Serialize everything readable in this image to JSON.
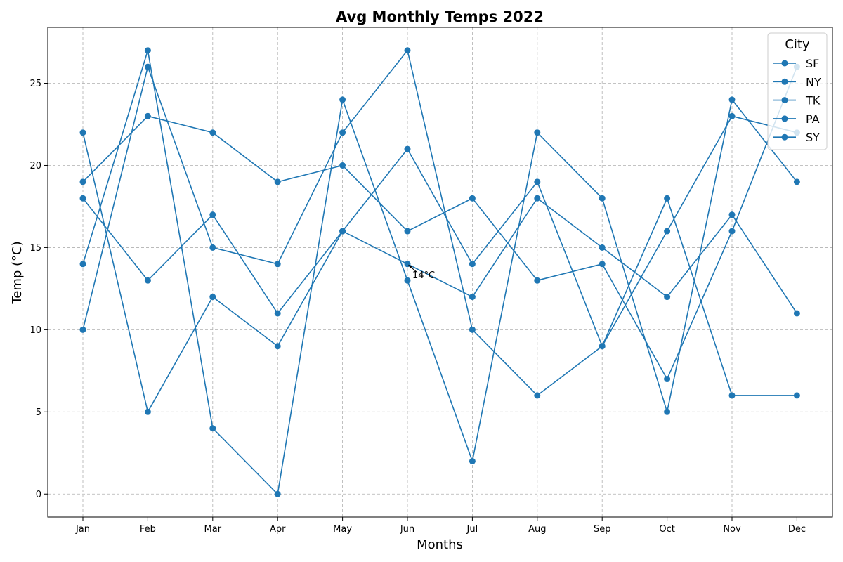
{
  "chart_data": {
    "type": "line",
    "title": "Avg Monthly Temps 2022",
    "xlabel": "Months",
    "ylabel": "Temp (°C)",
    "categories": [
      "Jan",
      "Feb",
      "Mar",
      "Apr",
      "May",
      "Jun",
      "Jul",
      "Aug",
      "Sep",
      "Oct",
      "Nov",
      "Dec"
    ],
    "ylim": [
      -1.4,
      28.4
    ],
    "yticks": [
      0,
      5,
      10,
      15,
      20,
      25
    ],
    "grid": true,
    "legend": {
      "title": "City",
      "placement": "top-right"
    },
    "series_color": "#1f77b4",
    "series": [
      {
        "name": "SF",
        "values": [
          22,
          5,
          12,
          9,
          16,
          14,
          12,
          18,
          15,
          12,
          17,
          11
        ]
      },
      {
        "name": "NY",
        "values": [
          14,
          27,
          4,
          0,
          24,
          13,
          2,
          22,
          18,
          5,
          24,
          19
        ]
      },
      {
        "name": "TK",
        "values": [
          10,
          26,
          15,
          14,
          22,
          27,
          10,
          6,
          9,
          18,
          6,
          6
        ]
      },
      {
        "name": "PA",
        "values": [
          18,
          13,
          17,
          11,
          16,
          21,
          14,
          19,
          9,
          16,
          23,
          22
        ]
      },
      {
        "name": "SY",
        "values": [
          19,
          23,
          22,
          19,
          20,
          16,
          18,
          13,
          14,
          7,
          16,
          26
        ]
      }
    ],
    "annotations": [
      {
        "text": "14°C",
        "x": "Jun",
        "y": 14
      }
    ]
  }
}
